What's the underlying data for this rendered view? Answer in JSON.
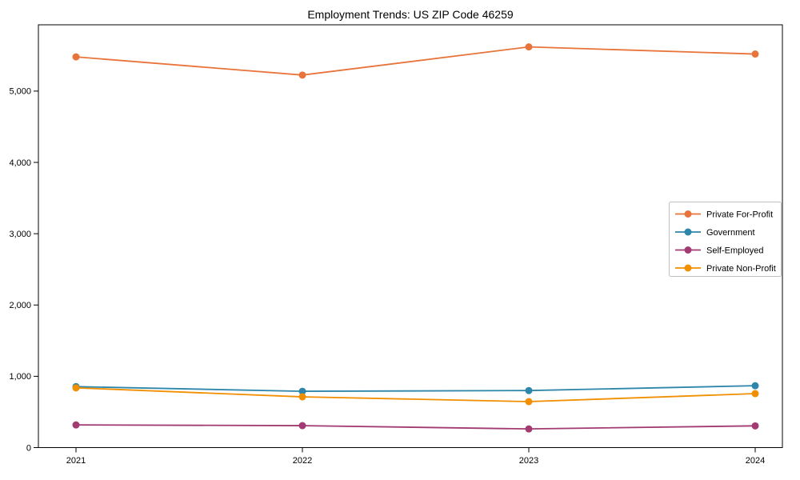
{
  "figure": {
    "background": "#ffffff",
    "axis_color": "#000000",
    "legend_border_color": "#c0c0c0",
    "legend_background": "#ffffff"
  },
  "chart_data": {
    "type": "line",
    "title": "Employment Trends: US ZIP Code 46259",
    "categories": [
      "2021",
      "2022",
      "2023",
      "2024"
    ],
    "series": [
      {
        "name": "Private For-Profit",
        "color": "#E8743B",
        "values": [
          5480,
          5225,
          5620,
          5520
        ]
      },
      {
        "name": "Government",
        "color": "#2E86AB",
        "values": [
          855,
          790,
          800,
          868
        ]
      },
      {
        "name": "Self-Employed",
        "color": "#A23B72",
        "values": [
          318,
          308,
          262,
          305
        ]
      },
      {
        "name": "Private Non-Profit",
        "color": "#F18F01",
        "values": [
          838,
          712,
          645,
          757
        ]
      }
    ],
    "xlabel": "",
    "ylabel": "",
    "ylim": [
      0,
      5930
    ],
    "yticks": [
      0,
      1000,
      2000,
      3000,
      4000,
      5000
    ],
    "ytick_labels": [
      "0",
      "1,000",
      "2,000",
      "3,000",
      "4,000",
      "5,000"
    ],
    "grid": false,
    "legend_position": "right-middle",
    "marker": "circle",
    "line_width": 1.8,
    "marker_radius": 4.5
  }
}
